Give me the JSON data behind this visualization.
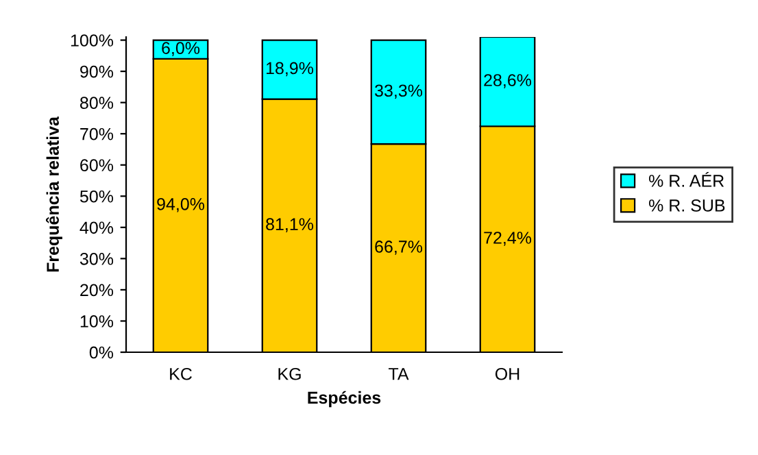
{
  "chart_data": {
    "type": "bar",
    "stacked": true,
    "xlabel": "Espécies",
    "ylabel": "Frequência relativa",
    "categories": [
      "KC",
      "KG",
      "TA",
      "OH"
    ],
    "series": [
      {
        "name": "% R. SUB",
        "color": "#ffcc00",
        "values": [
          94.0,
          81.1,
          66.7,
          72.4
        ],
        "value_labels": [
          "94,0%",
          "81,1%",
          "66,7%",
          "72,4%"
        ]
      },
      {
        "name": "% R. AÉR",
        "color": "#00ffff",
        "values": [
          6.0,
          18.9,
          33.3,
          28.6
        ],
        "value_labels": [
          "6,0%",
          "18,9%",
          "33,3%",
          "28,6%"
        ]
      }
    ],
    "ylim": [
      0,
      101
    ],
    "yticks": [
      {
        "value": 0,
        "label": "0%"
      },
      {
        "value": 10,
        "label": "10%"
      },
      {
        "value": 20,
        "label": "20%"
      },
      {
        "value": 30,
        "label": "30%"
      },
      {
        "value": 40,
        "label": "40%"
      },
      {
        "value": 50,
        "label": "50%"
      },
      {
        "value": 60,
        "label": "60%"
      },
      {
        "value": 70,
        "label": "70%"
      },
      {
        "value": 80,
        "label": "80%"
      },
      {
        "value": 90,
        "label": "90%"
      },
      {
        "value": 100,
        "label": "100%"
      }
    ],
    "legend": "right",
    "grid": false
  }
}
